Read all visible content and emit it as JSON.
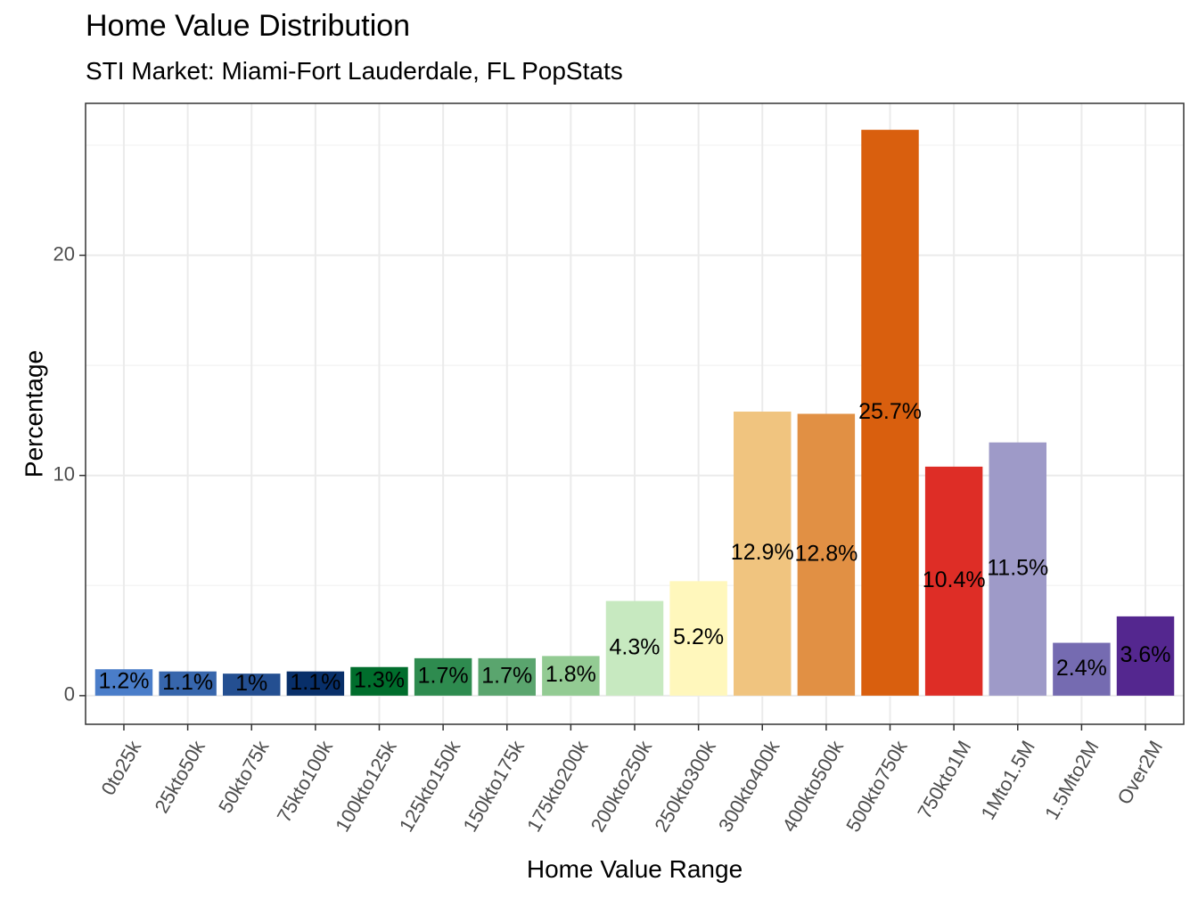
{
  "chart_data": {
    "type": "bar",
    "title": "Home Value Distribution",
    "subtitle": "STI Market: Miami-Fort Lauderdale, FL PopStats",
    "xlabel": "Home Value Range",
    "ylabel": "Percentage",
    "categories": [
      "0to25k",
      "25kto50k",
      "50kto75k",
      "75kto100k",
      "100kto125k",
      "125kto150k",
      "150kto175k",
      "175kto200k",
      "200kto250k",
      "250kto300k",
      "300kto400k",
      "400kto500k",
      "500kto750k",
      "750kto1M",
      "1Mto1.5M",
      "1.5Mto2M",
      "Over2M"
    ],
    "values": [
      1.2,
      1.1,
      1.0,
      1.1,
      1.3,
      1.7,
      1.7,
      1.8,
      4.3,
      5.2,
      12.9,
      12.8,
      25.7,
      10.4,
      11.5,
      2.4,
      3.6
    ],
    "data_labels": [
      "1.2%",
      "1.1%",
      "1%",
      "1.1%",
      "1.3%",
      "1.7%",
      "1.7%",
      "1.8%",
      "4.3%",
      "5.2%",
      "12.9%",
      "12.8%",
      "25.7%",
      "10.4%",
      "11.5%",
      "2.4%",
      "3.6%"
    ],
    "colors": [
      "#4a7dc9",
      "#3766ac",
      "#244f91",
      "#082f69",
      "#006d2c",
      "#2e8b4f",
      "#5aa56e",
      "#93cb93",
      "#c7e9c0",
      "#fff7bc",
      "#f0c47f",
      "#e19044",
      "#d95f0e",
      "#de2d26",
      "#9e9ac8",
      "#756bb1",
      "#54278f"
    ],
    "ylim": [
      -1.3,
      26.9
    ],
    "yticks": [
      0,
      10,
      20
    ],
    "grid": true,
    "legend": "none"
  }
}
